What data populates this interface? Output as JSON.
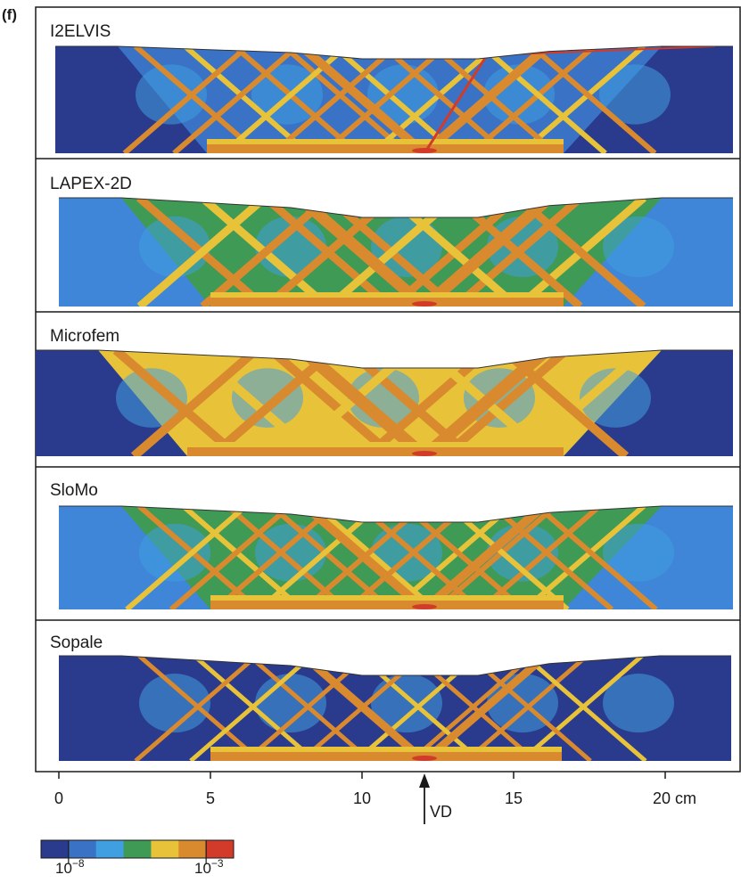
{
  "figure_label": "(f)",
  "panels": [
    {
      "label": "I2ELVIS",
      "background": "#2a3a8c"
    },
    {
      "label": "LAPEX-2D",
      "background": "#3f86d8"
    },
    {
      "label": "Microfem",
      "background": "#2a3a8c"
    },
    {
      "label": "SloMo",
      "background": "#3f86d8"
    },
    {
      "label": "Sopale",
      "background": "#2a3a8c"
    }
  ],
  "axis": {
    "ticks": [
      "0",
      "5",
      "10",
      "15",
      "20 cm"
    ],
    "marker_label": "VD",
    "marker_value": 12
  },
  "colorbar": {
    "colors": [
      "#2a3a8c",
      "#3a72c6",
      "#3f9fe0",
      "#3e9a55",
      "#e8c33a",
      "#d98a2e",
      "#d23a2a"
    ],
    "label_low_base": "10",
    "label_low_exp": "−8",
    "label_high_base": "10",
    "label_high_exp": "−3"
  },
  "palette": {
    "navy": "#2a3a8c",
    "mid_blue": "#3a72c6",
    "light_blue": "#3f9fe0",
    "green": "#3e9a55",
    "yellow": "#e8c33a",
    "orange": "#d98a2e",
    "red": "#d23a2a"
  }
}
